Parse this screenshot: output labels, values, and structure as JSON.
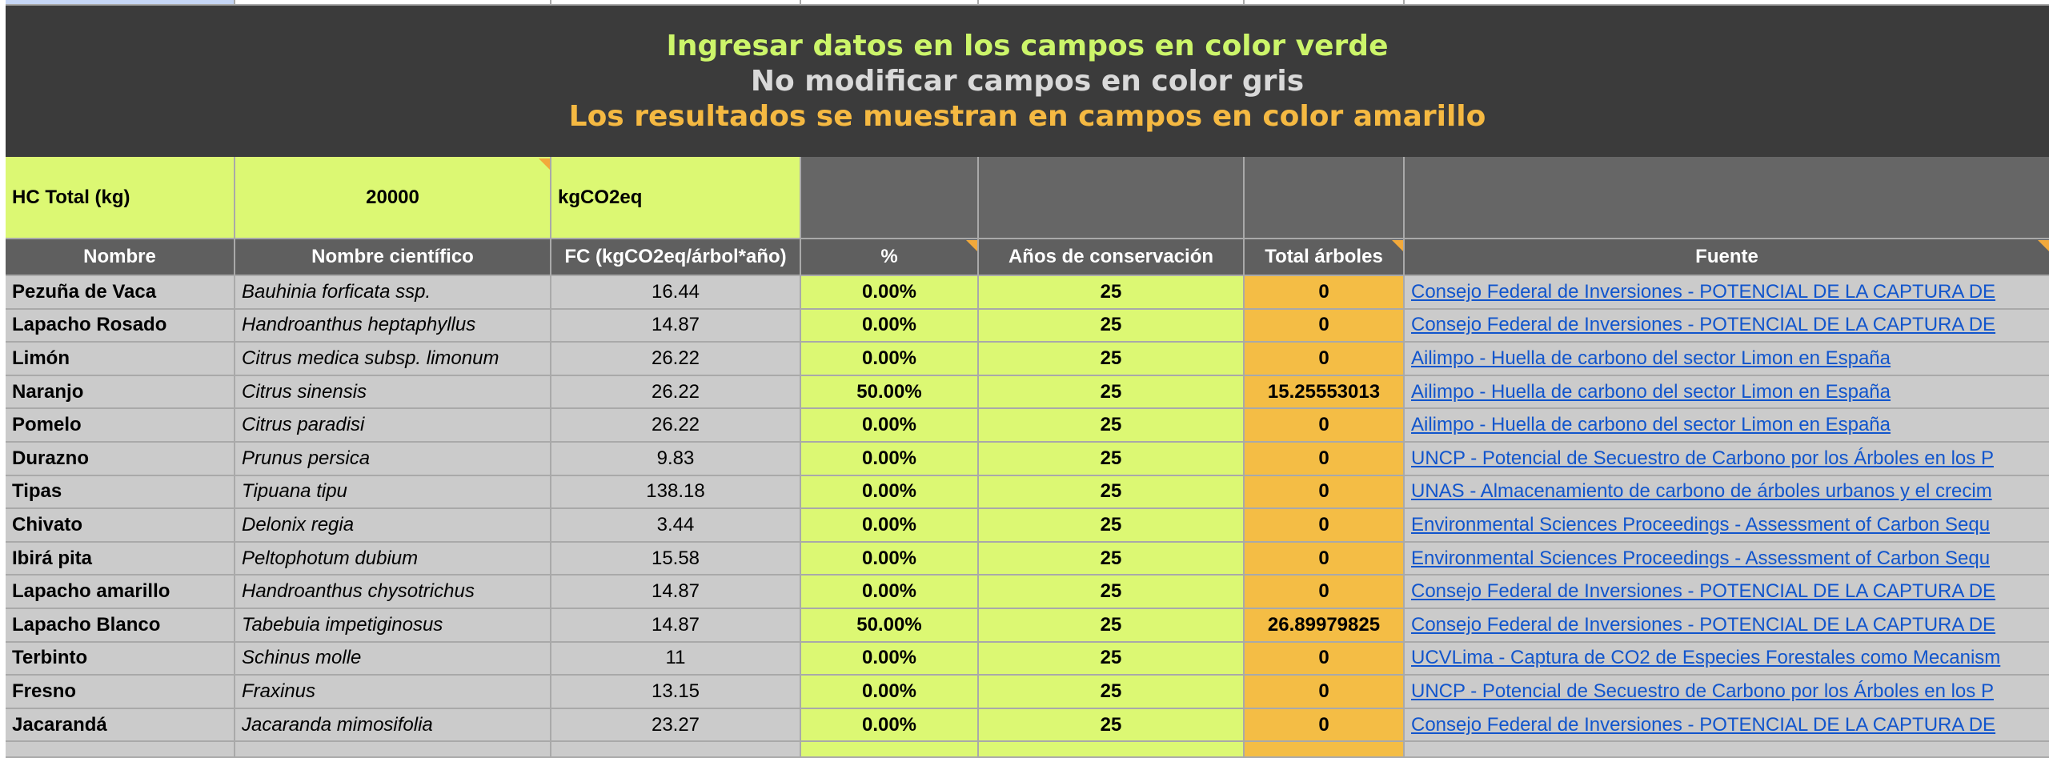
{
  "banner": {
    "line1": "Ingresar datos en los campos en color verde",
    "line2": "No modificar campos en color gris",
    "line3": "Los resultados se muestran en campos en color amarillo"
  },
  "summary": {
    "label": "HC Total (kg)",
    "value": "20000",
    "unit": "kgCO2eq"
  },
  "table": {
    "header": [
      "Nombre",
      "Nombre científico",
      "FC (kgCO2eq/árbol*año)",
      "%",
      "Años de conservación",
      "Total árboles",
      "Fuente"
    ],
    "rows": [
      [
        "Pezuña de Vaca",
        "Bauhinia forficata ssp.",
        "16.44",
        "0.00%",
        "25",
        "0",
        "Consejo Federal de Inversiones - POTENCIAL DE LA CAPTURA DE"
      ],
      [
        "Lapacho Rosado",
        "Handroanthus heptaphyllus",
        "14.87",
        "0.00%",
        "25",
        "0",
        "Consejo Federal de Inversiones - POTENCIAL DE LA CAPTURA DE"
      ],
      [
        "Limón",
        "Citrus medica subsp. limonum",
        "26.22",
        "0.00%",
        "25",
        "0",
        "Ailimpo - Huella de carbono del sector Limon en España"
      ],
      [
        "Naranjo",
        "Citrus sinensis",
        "26.22",
        "50.00%",
        "25",
        "15.25553013",
        "Ailimpo - Huella de carbono del sector Limon en España"
      ],
      [
        "Pomelo",
        "Citrus paradisi",
        "26.22",
        "0.00%",
        "25",
        "0",
        "Ailimpo - Huella de carbono del sector Limon en España"
      ],
      [
        "Durazno",
        "Prunus persica",
        "9.83",
        "0.00%",
        "25",
        "0",
        "UNCP - Potencial de Secuestro de Carbono por los Árboles en los P"
      ],
      [
        "Tipas",
        "Tipuana tipu",
        "138.18",
        "0.00%",
        "25",
        "0",
        "UNAS - Almacenamiento de carbono de árboles urbanos y el crecim"
      ],
      [
        "Chivato",
        "Delonix regia",
        "3.44",
        "0.00%",
        "25",
        "0",
        "Environmental Sciences Proceedings - Assessment of Carbon Sequ"
      ],
      [
        "Ibirá pita",
        "Peltophotum dubium",
        "15.58",
        "0.00%",
        "25",
        "0",
        "Environmental Sciences Proceedings - Assessment of Carbon Sequ"
      ],
      [
        "Lapacho amarillo",
        "Handroanthus chysotrichus",
        "14.87",
        "0.00%",
        "25",
        "0",
        "Consejo Federal de Inversiones - POTENCIAL DE LA CAPTURA DE"
      ],
      [
        "Lapacho Blanco",
        "Tabebuia impetiginosus",
        "14.87",
        "50.00%",
        "25",
        "26.89979825",
        "Consejo Federal de Inversiones - POTENCIAL DE LA CAPTURA DE"
      ],
      [
        "Terbinto",
        "Schinus molle",
        "11",
        "0.00%",
        "25",
        "0",
        "UCVLima - Captura de CO2 de Especies Forestales como Mecanism"
      ],
      [
        "Fresno",
        "Fraxinus",
        "13.15",
        "0.00%",
        "25",
        "0",
        "UNCP - Potencial de Secuestro de Carbono por los Árboles en los P"
      ],
      [
        "Jacarandá",
        "Jacaranda mimosifolia",
        "23.27",
        "0.00%",
        "25",
        "0",
        "Consejo Federal de Inversiones - POTENCIAL DE LA CAPTURA DE"
      ]
    ]
  }
}
